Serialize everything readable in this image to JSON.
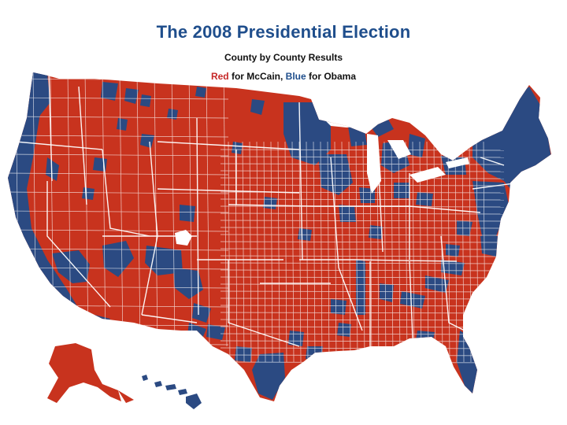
{
  "title": "The 2008 Presidential Election",
  "subtitle": "County by County Results",
  "legend": {
    "red_word": "Red",
    "red_rest": " for McCain, ",
    "blue_word": "Blue",
    "blue_rest": " for Obama"
  },
  "colors": {
    "mccain_red": "#c8331e",
    "obama_blue": "#2b4a82",
    "title_blue": "#1f4e8c",
    "legend_red": "#c62828",
    "border": "#ffffff"
  }
}
